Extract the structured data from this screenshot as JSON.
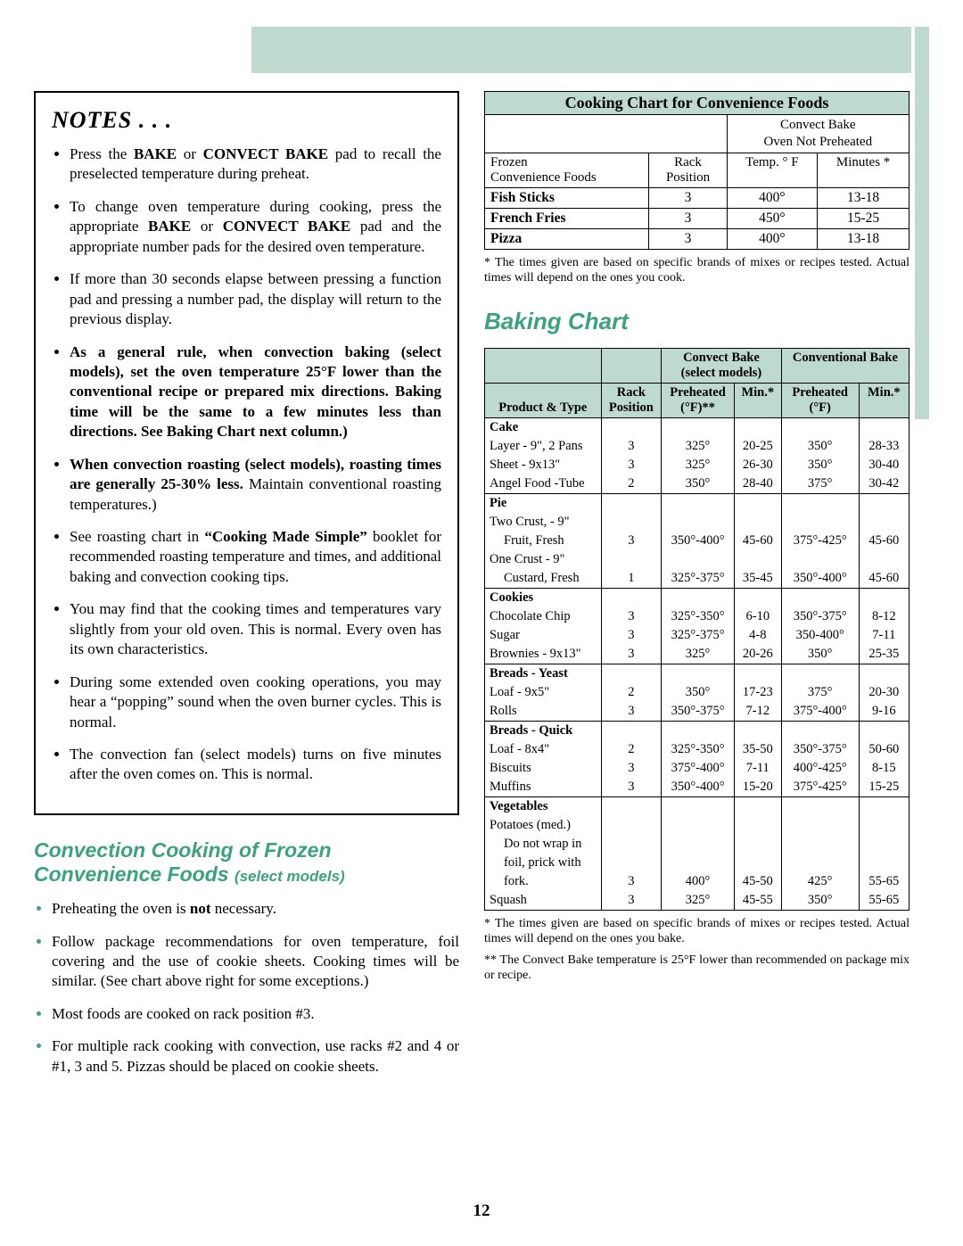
{
  "decor": {
    "mint": "#bed9cd",
    "accent": "#3aa37c"
  },
  "notes": {
    "title": "NOTES . . .",
    "items": [
      "Press the <b>BAKE</b> or <b>CONVECT BAKE</b> pad to recall the preselected temperature during preheat.",
      "To change oven temperature during cooking, press the appropriate <b>BAKE</b> or <b>CONVECT BAKE</b> pad and the appropriate number pads for the desired oven temperature.",
      "If more than 30 seconds elapse between pressing a function pad and pressing a number pad, the display will return to the previous display.",
      "<b>As a general rule, when convection baking (select models), set the oven temperature 25°F lower than the conventional recipe or prepared mix directions. Baking time will be the same to a few minutes less than directions.  See Baking Chart next column.)</b>",
      "<b>When convection roasting (select models), roasting times are generally 25-30% less.</b>  Maintain conventional roasting temperatures.)",
      "See roasting chart in <b>“Cooking Made Simple”</b> booklet for recommended roasting temperature and times, and additional baking and convection cooking tips.",
      "You may find that the cooking times and temperatures vary slightly from your old oven.  This is normal.  Every oven has its own characteristics.",
      "During some extended oven cooking operations, you may hear a “popping” sound when the oven burner cycles. This is normal.",
      "The convection fan (select models) turns on five minutes after the oven comes on. This is normal."
    ]
  },
  "convection": {
    "title": "Convection Cooking of Frozen Convenience Foods",
    "subtitle": "(select models)",
    "items": [
      "Preheating the oven is <b>not</b> necessary.",
      "Follow package recommendations for oven temperature, foil covering and the use of cookie sheets. Cooking times will be similar. (See chart above right for some exceptions.)",
      "Most foods are cooked on rack position #3.",
      "For multiple rack cooking with convection, use racks #2 and 4 or #1, 3 and 5. Pizzas should be placed on cookie sheets."
    ]
  },
  "convChart": {
    "title": "Cooking Chart for Convenience Foods",
    "topright": "Convect Bake\nOven Not Preheated",
    "col1": "Frozen\nConvenience Foods",
    "col2": "Rack\nPosition",
    "col3": "Temp. ° F",
    "col4": "Minutes *",
    "rows": [
      {
        "food": "Fish Sticks",
        "rack": "3",
        "temp": "400°",
        "min": "13-18"
      },
      {
        "food": "French Fries",
        "rack": "3",
        "temp": "450°",
        "min": "15-25"
      },
      {
        "food": "Pizza",
        "rack": "3",
        "temp": "400°",
        "min": "13-18"
      }
    ],
    "footnote": "* The times given are based on specific brands of mixes or recipes tested. Actual times will depend on the ones you cook."
  },
  "baking": {
    "heading": "Baking Chart",
    "h_convect": "Convect Bake\n(select models)",
    "h_conv": "Conventional Bake",
    "h_product": "Product & Type",
    "h_rack": "Rack\nPosition",
    "h_preA": "Preheated\n(°F)**",
    "h_minA": "Min.*",
    "h_preB": "Preheated\n(°F)",
    "h_minB": "Min.*",
    "sections": [
      {
        "name": "Cake",
        "rows": [
          {
            "p": "Layer -  9\", 2 Pans",
            "r": "3",
            "t1": "325°",
            "m1": "20-25",
            "t2": "350°",
            "m2": "28-33"
          },
          {
            "p": "Sheet - 9x13\"",
            "r": "3",
            "t1": "325°",
            "m1": "26-30",
            "t2": "350°",
            "m2": "30-40"
          },
          {
            "p": "Angel Food -Tube",
            "r": "2",
            "t1": "350°",
            "m1": "28-40",
            "t2": "375°",
            "m2": "30-42"
          }
        ]
      },
      {
        "name": "Pie",
        "rows": [
          {
            "p": "Two Crust, - 9\"",
            "r": "",
            "t1": "",
            "m1": "",
            "t2": "",
            "m2": ""
          },
          {
            "p": "Fruit, Fresh",
            "indent": true,
            "r": "3",
            "t1": "350°-400°",
            "m1": "45-60",
            "t2": "375°-425°",
            "m2": "45-60"
          },
          {
            "p": "One Crust - 9\"",
            "r": "",
            "t1": "",
            "m1": "",
            "t2": "",
            "m2": ""
          },
          {
            "p": "Custard, Fresh",
            "indent": true,
            "r": "1",
            "t1": "325°-375°",
            "m1": "35-45",
            "t2": "350°-400°",
            "m2": "45-60"
          }
        ]
      },
      {
        "name": "Cookies",
        "rows": [
          {
            "p": "Chocolate Chip",
            "r": "3",
            "t1": "325°-350°",
            "m1": "6-10",
            "t2": "350°-375°",
            "m2": "8-12"
          },
          {
            "p": "Sugar",
            "r": "3",
            "t1": "325°-375°",
            "m1": "4-8",
            "t2": "350-400°",
            "m2": "7-11"
          },
          {
            "p": "Brownies - 9x13\"",
            "r": "3",
            "t1": "325°",
            "m1": "20-26",
            "t2": "350°",
            "m2": "25-35"
          }
        ]
      },
      {
        "name": "Breads - Yeast",
        "rows": [
          {
            "p": "Loaf - 9x5\"",
            "r": "2",
            "t1": "350°",
            "m1": "17-23",
            "t2": "375°",
            "m2": "20-30"
          },
          {
            "p": "Rolls",
            "r": "3",
            "t1": "350°-375°",
            "m1": "7-12",
            "t2": "375°-400°",
            "m2": "9-16"
          }
        ]
      },
      {
        "name": "Breads - Quick",
        "rows": [
          {
            "p": "Loaf - 8x4\"",
            "r": "2",
            "t1": "325°-350°",
            "m1": "35-50",
            "t2": "350°-375°",
            "m2": "50-60"
          },
          {
            "p": "Biscuits",
            "r": "3",
            "t1": "375°-400°",
            "m1": "7-11",
            "t2": "400°-425°",
            "m2": "8-15"
          },
          {
            "p": "Muffins",
            "r": "3",
            "t1": "350°-400°",
            "m1": "15-20",
            "t2": "375°-425°",
            "m2": "15-25"
          }
        ]
      },
      {
        "name": "Vegetables",
        "rows": [
          {
            "p": "Potatoes (med.)",
            "r": "",
            "t1": "",
            "m1": "",
            "t2": "",
            "m2": ""
          },
          {
            "p": "Do not wrap in",
            "indent": true,
            "r": "",
            "t1": "",
            "m1": "",
            "t2": "",
            "m2": ""
          },
          {
            "p": "foil, prick with",
            "indent": true,
            "r": "",
            "t1": "",
            "m1": "",
            "t2": "",
            "m2": ""
          },
          {
            "p": "fork.",
            "indent": true,
            "r": "3",
            "t1": "400°",
            "m1": "45-50",
            "t2": "425°",
            "m2": "55-65"
          },
          {
            "p": "Squash",
            "r": "3",
            "t1": "325°",
            "m1": "45-55",
            "t2": "350°",
            "m2": "55-65"
          }
        ]
      }
    ],
    "foot1": "* The times given are based on specific brands of mixes or recipes tested. Actual times will depend on the ones you bake.",
    "foot2": "** The Convect Bake temperature is 25°F lower than recommended on package mix or recipe."
  },
  "pageNumber": "12"
}
